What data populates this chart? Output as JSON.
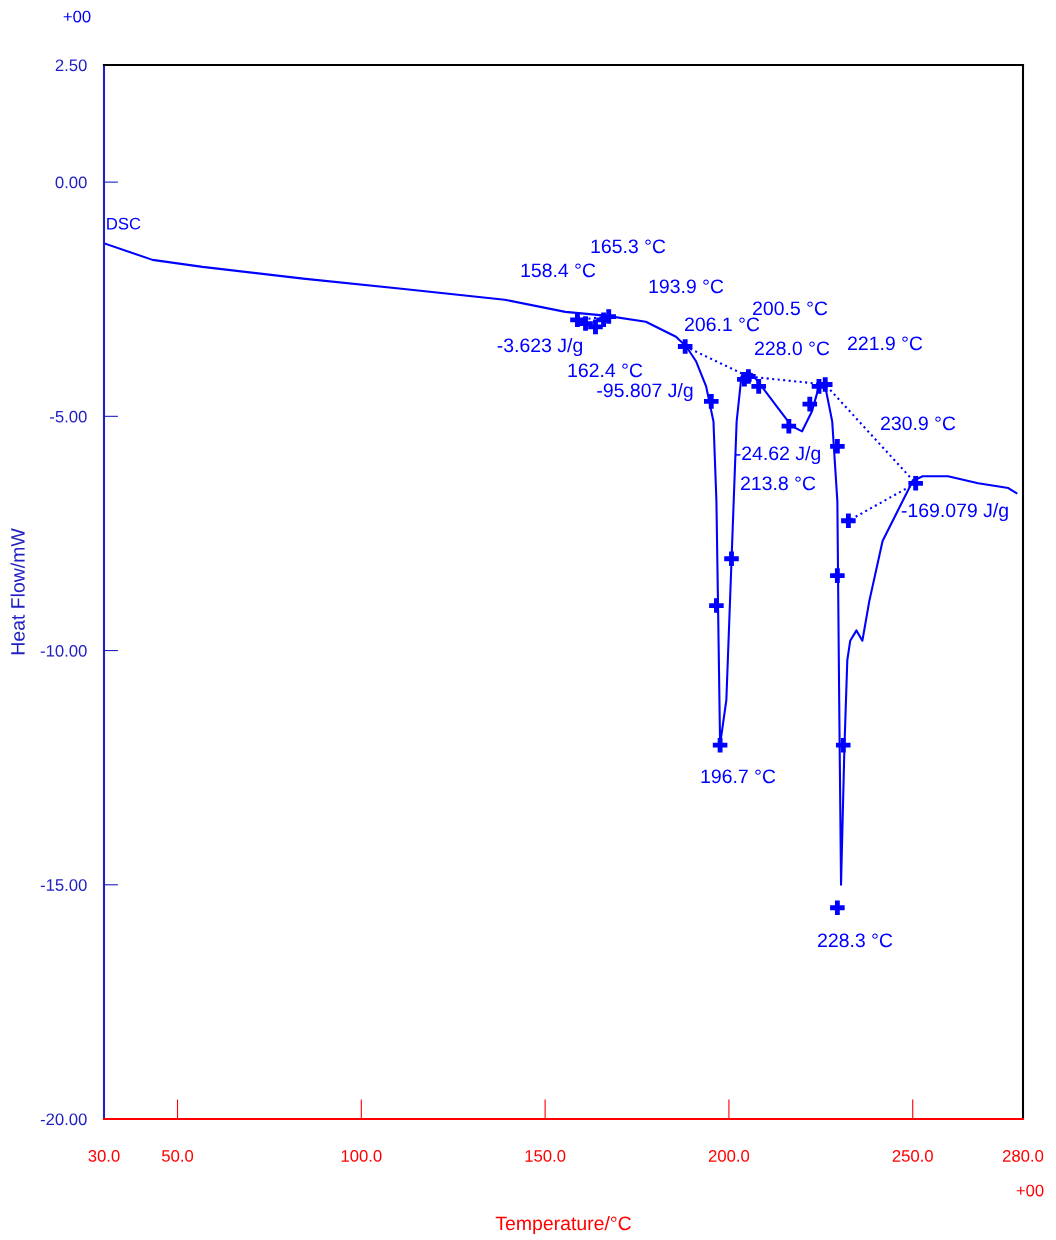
{
  "chart_data": {
    "type": "line",
    "xlabel": "Temperature/°C",
    "ylabel": "Heat Flow/mW",
    "xlim": [
      30,
      280
    ],
    "ylim": [
      -20,
      2.5
    ],
    "xticks": [
      {
        "value": 30,
        "label": "30.0"
      },
      {
        "value": 50,
        "label": "50.0"
      },
      {
        "value": 100,
        "label": "100.0"
      },
      {
        "value": 150,
        "label": "150.0"
      },
      {
        "value": 200,
        "label": "200.0"
      },
      {
        "value": 250,
        "label": "250.0"
      },
      {
        "value": 280,
        "label": "280.0"
      }
    ],
    "yticks": [
      {
        "value": 2.5,
        "label": "2.50"
      },
      {
        "value": 0,
        "label": "0.00"
      },
      {
        "value": -5,
        "label": "-5.00"
      },
      {
        "value": -10,
        "label": "-10.00"
      },
      {
        "value": -15,
        "label": "-15.00"
      },
      {
        "value": -20,
        "label": "-20.00"
      }
    ],
    "series": [
      {
        "name": "DSC",
        "color": "#0000ff",
        "line_style": "solid",
        "x": [
          30.5,
          43.2,
          56.8,
          84.2,
          111.6,
          139,
          155.5,
          166.4,
          177.4,
          185.6,
          188.4,
          191.1,
          193.8,
          195.8,
          196.6,
          197.1,
          197.6,
          199.3,
          200.7,
          202.1,
          203.4,
          206.2,
          208.9,
          213.0,
          217.1,
          219.9,
          222.6,
          224.5,
          226.2,
          228.1,
          229.5,
          230.0,
          230.5,
          231.4,
          232.2,
          233.0,
          234.7,
          236.3,
          238.2,
          241.8,
          245.9,
          250.0,
          252.7,
          259.6,
          267.8,
          276.0,
          278.2
        ],
        "values": [
          -1.32,
          -1.66,
          -1.81,
          -2.06,
          -2.28,
          -2.51,
          -2.77,
          -2.85,
          -2.98,
          -3.3,
          -3.51,
          -3.83,
          -4.36,
          -5.11,
          -6.81,
          -9.36,
          -12.0,
          -11.06,
          -8.09,
          -5.11,
          -4.15,
          -4.09,
          -4.36,
          -4.79,
          -5.21,
          -5.32,
          -4.89,
          -4.36,
          -4.36,
          -5.11,
          -6.81,
          -11.06,
          -15.0,
          -12.13,
          -10.21,
          -9.79,
          -9.57,
          -9.79,
          -8.94,
          -7.66,
          -7.02,
          -6.38,
          -6.28,
          -6.28,
          -6.43,
          -6.53,
          -6.64
        ]
      },
      {
        "color": "#0000ff",
        "line_style": "dotted",
        "x": [
          158.8,
          167.3
        ],
        "values": [
          -2.94,
          -2.87
        ]
      },
      {
        "color": "#0000ff",
        "line_style": "dotted",
        "x": [
          188.1,
          205.3,
          226.2,
          250.8,
          232.5
        ],
        "values": [
          -3.51,
          -4.15,
          -4.32,
          -6.43,
          -7.23
        ]
      },
      {
        "type": "scatter",
        "color": "#0000ff",
        "marker": "cross",
        "x": [
          158.8,
          161.0,
          163.7,
          165.9,
          167.3,
          188.1,
          195.2,
          196.6,
          197.6,
          200.7,
          204.2,
          205.3,
          208.1,
          216.3,
          222.0,
          224.5,
          226.2,
          229.5,
          229.5,
          231.1,
          229.5,
          232.5,
          250.8
        ],
        "values": [
          -2.94,
          -3.02,
          -3.09,
          -2.94,
          -2.87,
          -3.51,
          -4.68,
          -9.04,
          -12.02,
          -8.04,
          -4.21,
          -4.15,
          -4.36,
          -5.21,
          -4.74,
          -4.36,
          -4.32,
          -5.64,
          -8.4,
          -12.02,
          -15.49,
          -7.23,
          -6.43
        ]
      }
    ],
    "grid": false,
    "legend": false,
    "annotations": [
      "158.4 °C",
      "165.3 °C",
      "193.9 °C",
      "-3.623 J/g",
      "162.4 °C",
      "206.1 °C",
      "200.5 °C",
      "228.0 °C",
      "221.9 °C",
      "-95.807 J/g",
      "-24.62 J/g",
      "213.8 °C",
      "230.9 °C",
      "-169.079 J/g",
      "196.7 °C",
      "228.3 °C",
      "+00",
      "+00"
    ]
  }
}
